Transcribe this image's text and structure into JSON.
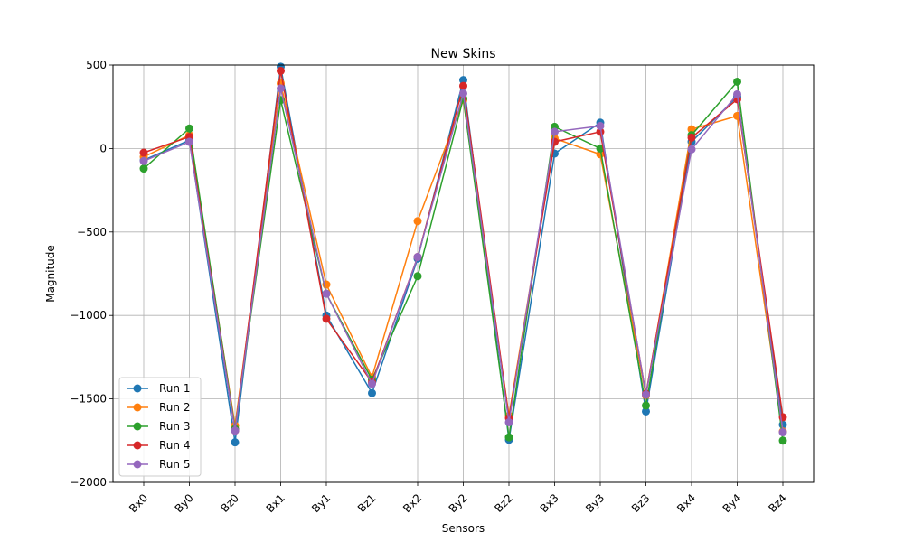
{
  "chart_data": {
    "type": "line",
    "title": "New Skins",
    "xlabel": "Sensors",
    "ylabel": "Magnitude",
    "ylim": [
      -2000,
      500
    ],
    "yticks": [
      500,
      0,
      -500,
      -1000,
      -1500,
      -2000
    ],
    "ytick_labels": [
      "500",
      "0",
      "−500",
      "−1000",
      "−1500",
      "−2000"
    ],
    "grid": true,
    "legend_position": "lower-left",
    "categories": [
      "Bx0",
      "By0",
      "Bz0",
      "Bx1",
      "By1",
      "Bz1",
      "Bx2",
      "By2",
      "Bz2",
      "Bx3",
      "By3",
      "Bz3",
      "Bx4",
      "By4",
      "Bz4"
    ],
    "series": [
      {
        "name": "Run 1",
        "color": "#1f77b4",
        "values": [
          -70,
          50,
          -1760,
          490,
          -1000,
          -1465,
          -660,
          410,
          -1745,
          -30,
          155,
          -1575,
          40,
          310,
          -1655
        ]
      },
      {
        "name": "Run 2",
        "color": "#ff7f0e",
        "values": [
          -50,
          80,
          -1660,
          390,
          -815,
          -1370,
          -435,
          290,
          -1600,
          60,
          -35,
          -1480,
          115,
          195,
          -1695
        ]
      },
      {
        "name": "Run 3",
        "color": "#2ca02c",
        "values": [
          -120,
          120,
          -1680,
          290,
          -870,
          -1385,
          -765,
          300,
          -1730,
          130,
          0,
          -1540,
          80,
          400,
          -1750
        ]
      },
      {
        "name": "Run 4",
        "color": "#d62728",
        "values": [
          -25,
          70,
          -1690,
          465,
          -1020,
          -1400,
          -650,
          375,
          -1615,
          40,
          100,
          -1470,
          65,
          295,
          -1610
        ]
      },
      {
        "name": "Run 5",
        "color": "#9467bd",
        "values": [
          -75,
          40,
          -1690,
          360,
          -870,
          -1410,
          -650,
          330,
          -1640,
          100,
          135,
          -1475,
          -5,
          325,
          -1700
        ]
      }
    ]
  }
}
